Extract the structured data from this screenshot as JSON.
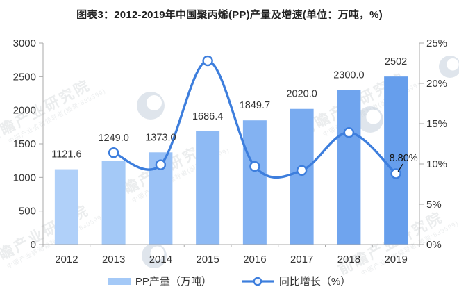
{
  "title": "图表3：2012-2019年中国聚丙烯(PP)产量及增速(单位：万吨，%)",
  "chart_data": {
    "type": "combo",
    "title": "图表3：2012-2019年中国聚丙烯(PP)产量及增速(单位：万吨，%)",
    "categories": [
      "2012",
      "2013",
      "2014",
      "2015",
      "2016",
      "2017",
      "2018",
      "2019"
    ],
    "series": [
      {
        "name": "PP产量（万吨）",
        "type": "bar",
        "axis": "left",
        "values": [
          1121.6,
          1249.0,
          1373.0,
          1686.4,
          1849.7,
          2020.0,
          2300.0,
          2502
        ],
        "data_labels": [
          "1121.6",
          "1249.0",
          "1373.0",
          "1686.4",
          "1849.7",
          "2020.0",
          "2300.0",
          "2502"
        ],
        "bar_colors": [
          "#b0d0f9",
          "#a4c9f7",
          "#99c1f6",
          "#8ebaf4",
          "#83b2f2",
          "#79abf0",
          "#6fa4ee",
          "#669eec"
        ]
      },
      {
        "name": "同比增长（%）",
        "type": "line",
        "axis": "right",
        "values": [
          null,
          11.4,
          9.9,
          22.8,
          9.7,
          9.2,
          13.9,
          8.8
        ],
        "color": "#3d7edd",
        "marker": "open-circle",
        "annotation": {
          "category": "2019",
          "text": "8.80%"
        }
      }
    ],
    "left_axis": {
      "min": 0,
      "max": 3000,
      "step": 500,
      "tick_labels": [
        "0",
        "500",
        "1000",
        "1500",
        "2000",
        "2500",
        "3000"
      ]
    },
    "right_axis": {
      "min": 0,
      "max": 25,
      "step": 5,
      "tick_labels": [
        "0%",
        "5%",
        "10%",
        "15%",
        "20%",
        "25%"
      ]
    },
    "grid": false,
    "legend_position": "bottom"
  },
  "legend": {
    "items": [
      {
        "label": "PP产量（万吨）",
        "swatch_color": "#a4c9f7",
        "kind": "bar"
      },
      {
        "label": "同比增长（%）",
        "swatch_color": "#3d7edd",
        "kind": "line"
      }
    ]
  },
  "watermark": {
    "text": "前瞻产业研究院",
    "subtext": "中国产业咨询领导者(股票:839599)"
  },
  "colors": {
    "background": "#ffffff",
    "title_text": "#222222",
    "axis_text": "#333333",
    "axis_line": "#a8a8a8",
    "line_series": "#3d7edd",
    "annotation_text": "#111111"
  }
}
